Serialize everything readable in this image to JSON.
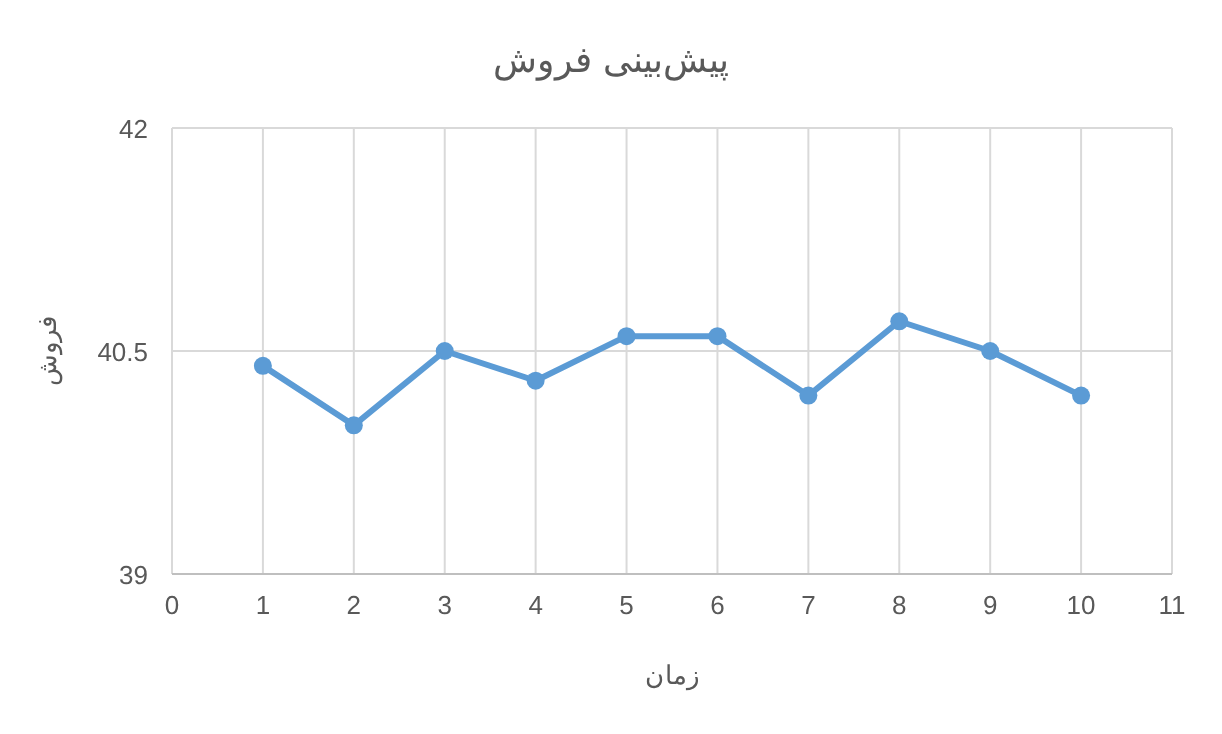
{
  "chart_data": {
    "type": "line",
    "title": "پیش‌بینی فروش",
    "xlabel": "زمان",
    "ylabel": "فروش",
    "x": [
      1,
      2,
      3,
      4,
      5,
      6,
      7,
      8,
      9,
      10
    ],
    "series": [
      {
        "color": "#5b9bd5",
        "values": [
          40.4,
          40.0,
          40.5,
          40.3,
          40.6,
          40.6,
          40.2,
          40.7,
          40.5,
          40.2
        ]
      }
    ],
    "xlim": [
      0,
      11
    ],
    "xticks": [
      0,
      1,
      2,
      3,
      4,
      5,
      6,
      7,
      8,
      9,
      10,
      11
    ],
    "ylim": [
      39,
      42
    ],
    "yticks": [
      39,
      40.5,
      42
    ],
    "grid": true,
    "marker": "circle",
    "line_style": "solid"
  }
}
